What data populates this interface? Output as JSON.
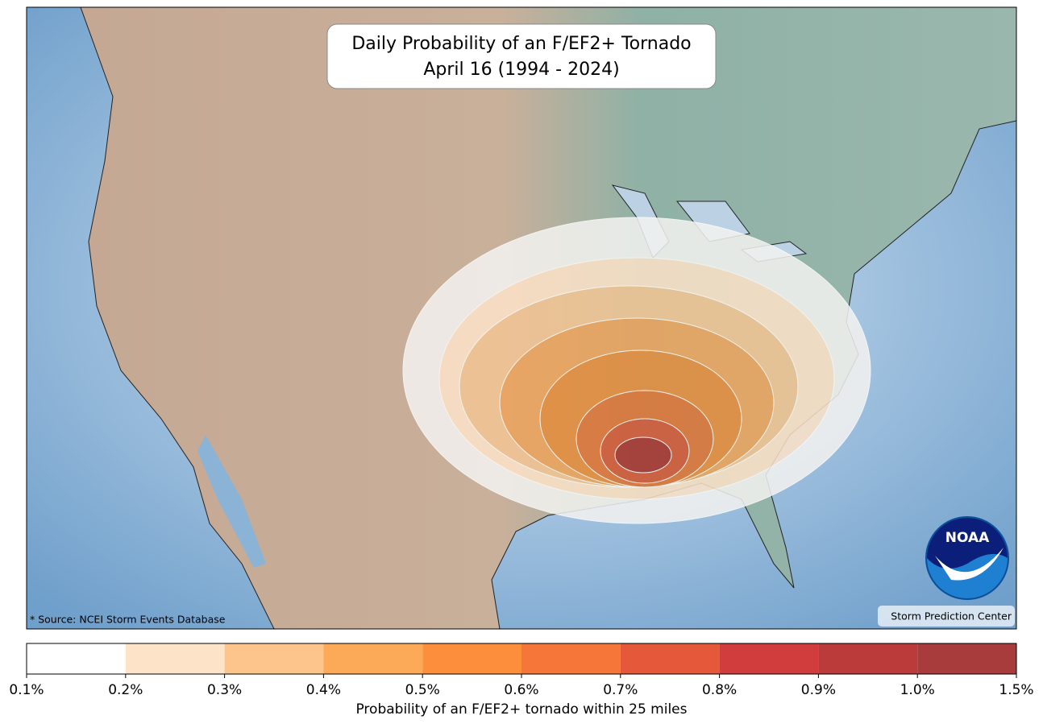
{
  "map": {
    "title": [
      "Daily Probability of an F/EF2+ Tornado",
      "April 16 (1994 - 2024)"
    ],
    "source": "* Source: NCEI Storm Events Database",
    "credit": "Storm Prediction Center",
    "logo": "NOAA",
    "colorbar": {
      "label": "Probability of an F/EF2+ tornado within 25 miles",
      "ticks": [
        {
          "value": 0.1,
          "label": "0.1%"
        },
        {
          "value": 0.2,
          "label": "0.2%"
        },
        {
          "value": 0.3,
          "label": "0.3%"
        },
        {
          "value": 0.4,
          "label": "0.4%"
        },
        {
          "value": 0.5,
          "label": "0.5%"
        },
        {
          "value": 0.6,
          "label": "0.6%"
        },
        {
          "value": 0.7,
          "label": "0.7%"
        },
        {
          "value": 0.8,
          "label": "0.8%"
        },
        {
          "value": 0.9,
          "label": "0.9%"
        },
        {
          "value": 1.0,
          "label": "1.0%"
        },
        {
          "value": 1.5,
          "label": "1.5%"
        }
      ],
      "colors": [
        "#ffffff",
        "#fde3c8",
        "#fdc48c",
        "#fdaa58",
        "#fd8f3c",
        "#f6763a",
        "#e5583a",
        "#d13c3c",
        "#bb3a3a",
        "#a83c3c"
      ]
    }
  }
}
